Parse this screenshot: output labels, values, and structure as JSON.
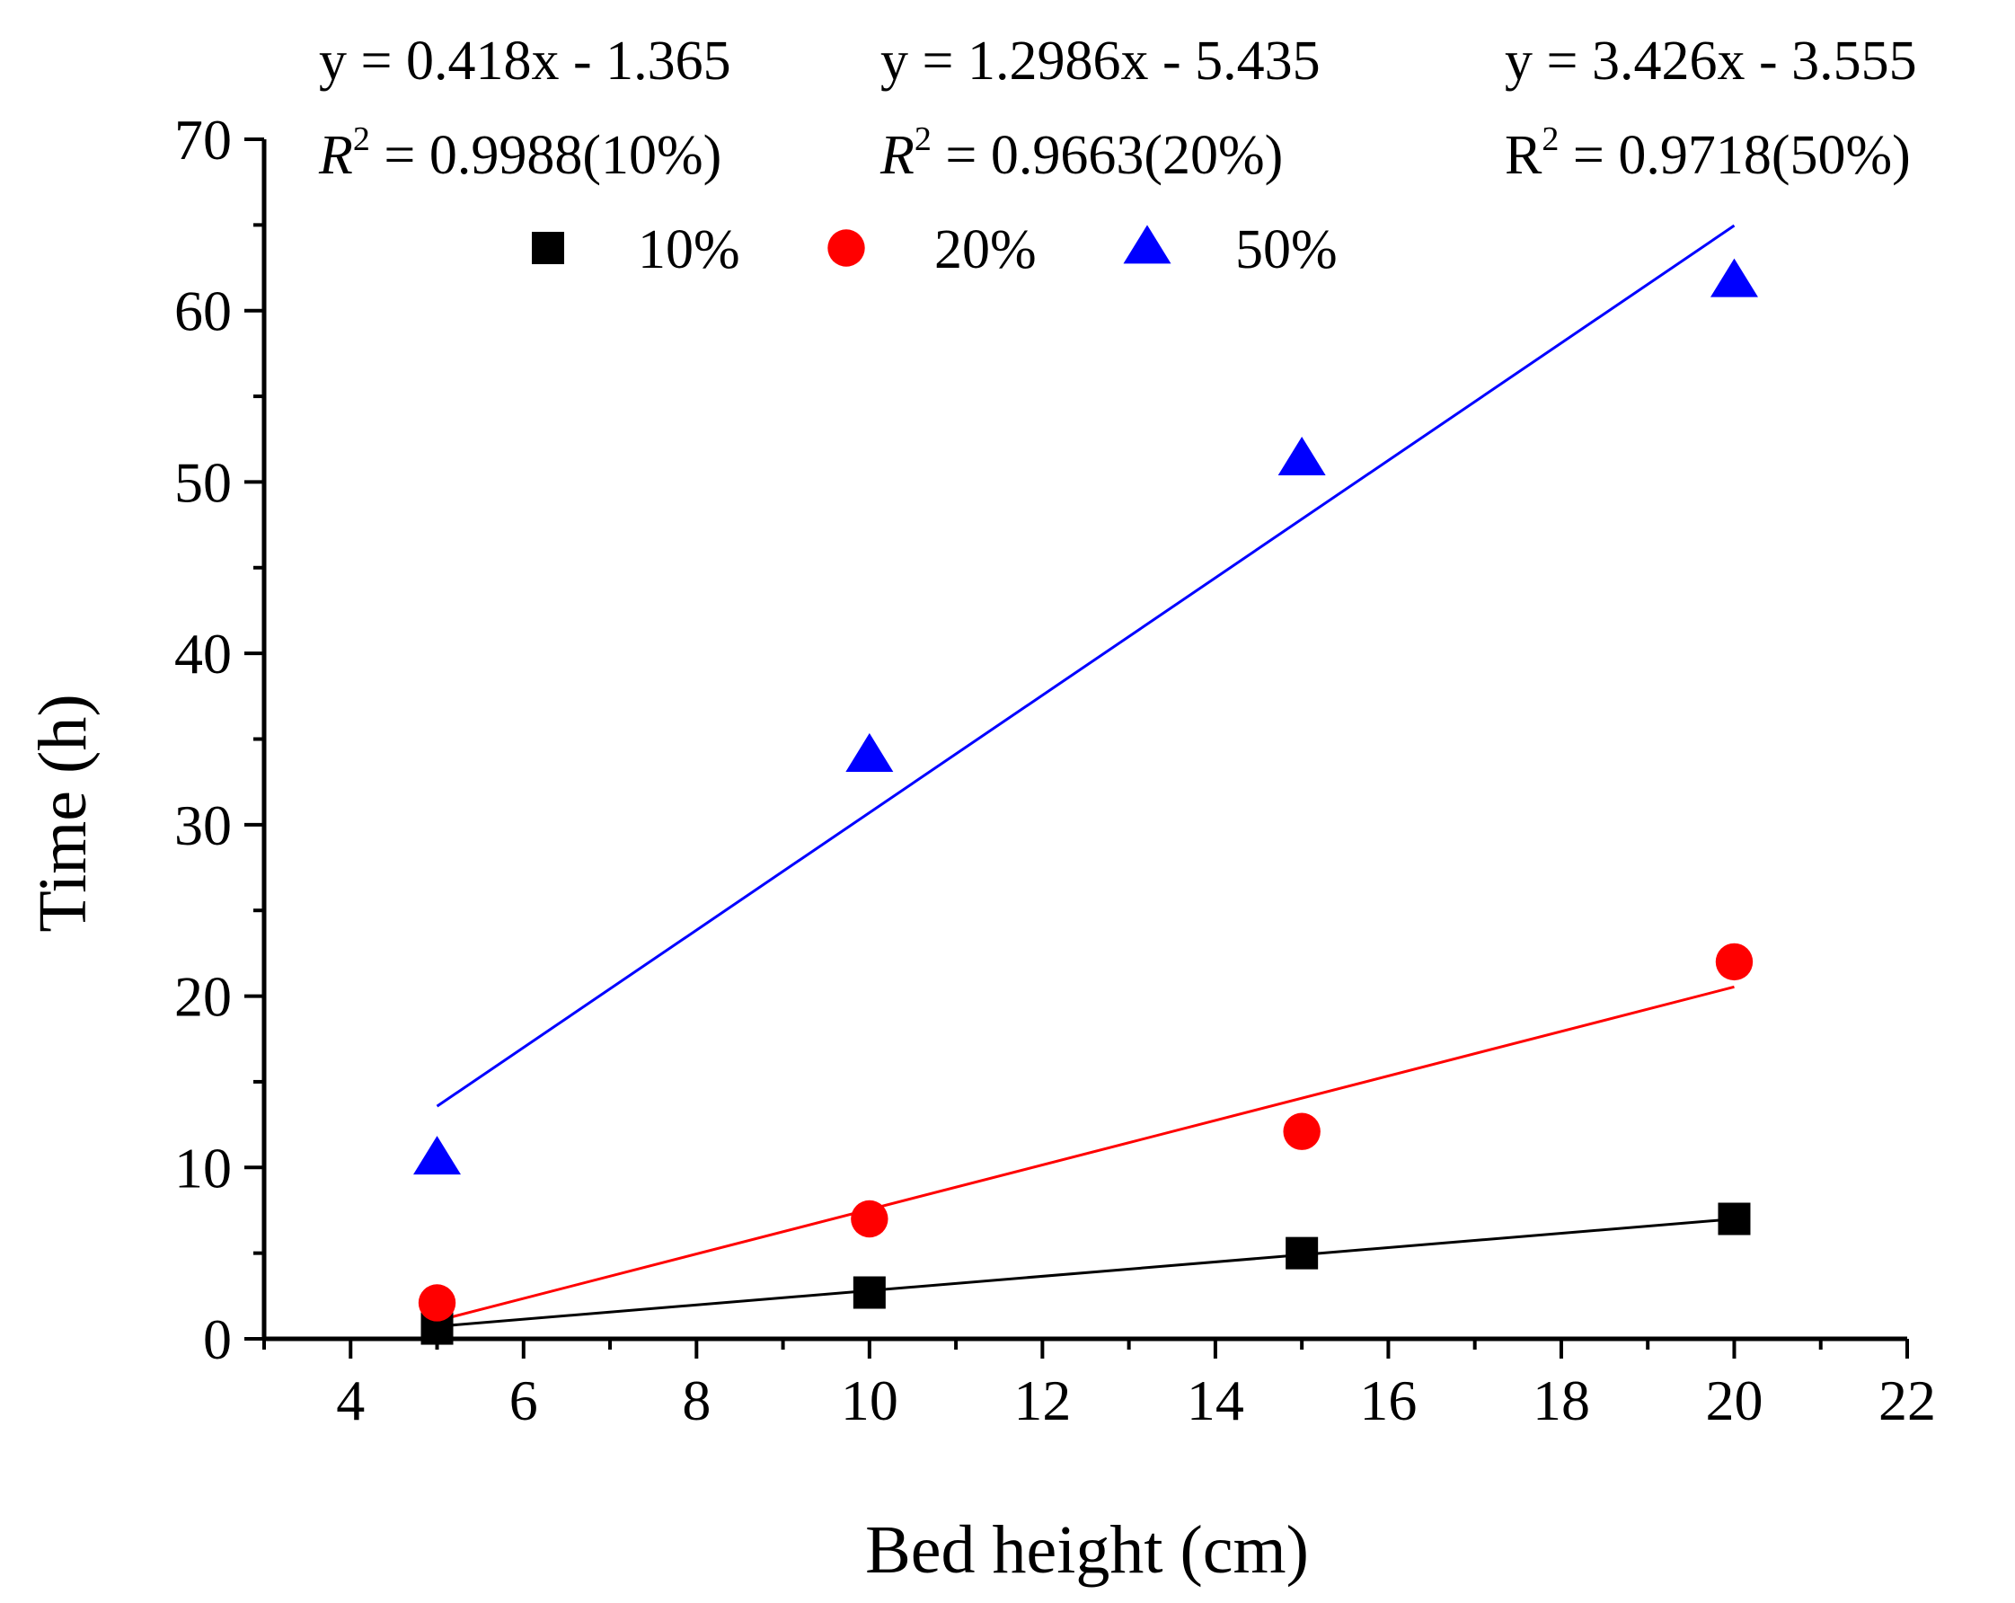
{
  "chart_data": {
    "type": "scatter",
    "xlabel": "Bed height (cm)",
    "ylabel": "Time (h)",
    "xlim": [
      3,
      22
    ],
    "ylim": [
      0,
      70
    ],
    "x_ticks": [
      "4",
      "6",
      "8",
      "10",
      "12",
      "14",
      "16",
      "18",
      "20",
      "22"
    ],
    "y_ticks": [
      "0",
      "10",
      "20",
      "30",
      "40",
      "50",
      "60",
      "70"
    ],
    "legend_position": "top",
    "series": [
      {
        "name": "10%",
        "color": "#000000",
        "marker": "square",
        "x": [
          5,
          10,
          15,
          20
        ],
        "y": [
          0.6,
          2.7,
          5.0,
          7.0
        ],
        "fit": {
          "slope": 0.418,
          "intercept": -1.365
        },
        "equation": "y = 0.418x - 1.365",
        "r2_label": "R",
        "r2_text": " = 0.9988(10%)"
      },
      {
        "name": "20%",
        "color": "#ff0000",
        "marker": "circle",
        "x": [
          5,
          10,
          15,
          20
        ],
        "y": [
          2.1,
          7.0,
          12.1,
          22.0
        ],
        "fit": {
          "slope": 1.2986,
          "intercept": -5.435
        },
        "equation": "y = 1.2986x - 5.435",
        "r2_label": "R",
        "r2_text": " = 0.9663(20%)"
      },
      {
        "name": "50%",
        "color": "#0000ff",
        "marker": "triangle",
        "x": [
          5,
          10,
          15,
          20
        ],
        "y": [
          10.5,
          34.0,
          51.3,
          61.7
        ],
        "fit": {
          "slope": 3.426,
          "intercept": -3.555
        },
        "equation": "y = 3.426x - 3.555",
        "r2_label": "R",
        "r2_text": " = 0.9718(50%)"
      }
    ]
  }
}
